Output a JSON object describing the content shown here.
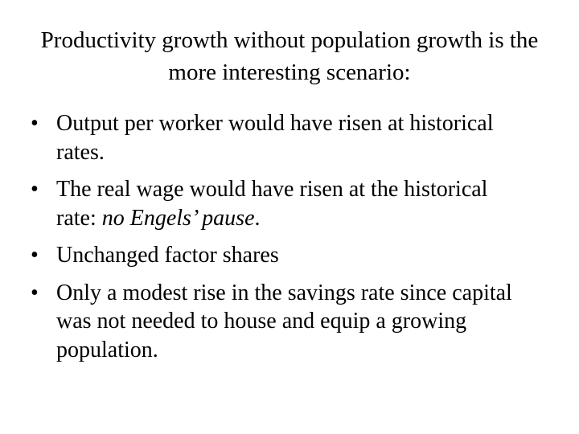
{
  "title": "Productivity growth without population growth is the more interesting scenario:",
  "bullets": [
    {
      "text": "Output per worker would have risen at historical rates."
    },
    {
      "text": "The real wage would have risen at the historical rate: ",
      "emphasis": "no Engels’ pause",
      "end": "."
    },
    {
      "text": "Unchanged factor shares"
    },
    {
      "text": "Only a modest rise in the savings rate since capital was not needed to house and equip a growing population."
    }
  ]
}
